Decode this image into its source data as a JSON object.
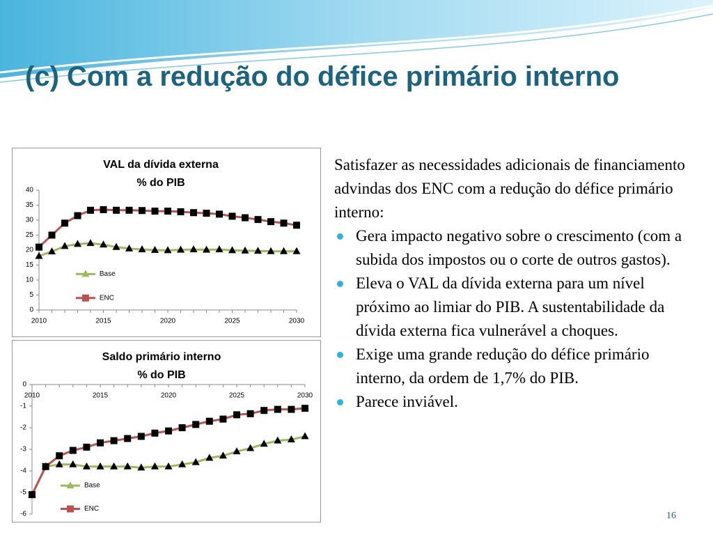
{
  "slide": {
    "title": "(c) Com a redução do défice primário interno",
    "intro": "Satisfazer as necessidades adicionais de financiamento advindas dos ENC com a redução do défice primário interno:",
    "bullets": [
      "Gera impacto negativo sobre o crescimento (com a subida dos impostos ou o corte de outros gastos).",
      "Eleva o VAL da dívida externa para um nível próximo ao limiar do PIB. A sustentabilidade da dívida externa fica vulnerável a choques.",
      "Exige uma grande redução do défice primário interno, da ordem de 1,7% do PIB.",
      "Parece inviável."
    ],
    "page_number": "16"
  },
  "chart_data": [
    {
      "type": "line",
      "title": [
        "VAL da dívida externa",
        "% do PIB"
      ],
      "x": [
        2010,
        2011,
        2012,
        2013,
        2014,
        2015,
        2016,
        2017,
        2018,
        2019,
        2020,
        2021,
        2022,
        2023,
        2024,
        2025,
        2026,
        2027,
        2028,
        2029,
        2030
      ],
      "xlim": [
        2010,
        2030
      ],
      "xticks": [
        2010,
        2015,
        2020,
        2025,
        2030
      ],
      "ylim": [
        0,
        40
      ],
      "yticks": [
        0,
        5,
        10,
        15,
        20,
        25,
        30,
        35,
        40
      ],
      "legend": "center-left",
      "series": [
        {
          "name": "Base",
          "color": "#9bbb59",
          "marker": "triangle",
          "marker_color": "#000000",
          "values": [
            18,
            19.5,
            21.3,
            22,
            22.3,
            21.8,
            21,
            20.5,
            20.2,
            20,
            19.9,
            20.1,
            20.2,
            20.1,
            20.2,
            19.9,
            19.8,
            19.7,
            19.6,
            19.6,
            19.6
          ]
        },
        {
          "name": "ENC",
          "color": "#c0504d",
          "marker": "square",
          "marker_color": "#000000",
          "values": [
            21,
            25,
            29,
            31.5,
            33.3,
            33.5,
            33.3,
            33.3,
            33.2,
            33,
            33,
            32.8,
            32.5,
            32.3,
            32,
            31.3,
            30.8,
            30.2,
            29.5,
            29,
            28.3
          ]
        }
      ]
    },
    {
      "type": "line",
      "title": [
        "Saldo primário interno",
        "% do PIB"
      ],
      "x": [
        2010,
        2011,
        2012,
        2013,
        2014,
        2015,
        2016,
        2017,
        2018,
        2019,
        2020,
        2021,
        2022,
        2023,
        2024,
        2025,
        2026,
        2027,
        2028,
        2029,
        2030
      ],
      "xlim": [
        2010,
        2030
      ],
      "xticks": [
        2010,
        2015,
        2020,
        2025,
        2030
      ],
      "ylim": [
        -6,
        0
      ],
      "yticks": [
        -6,
        -5,
        -4,
        -3,
        -2,
        -1,
        0
      ],
      "legend": "bottom-left",
      "series": [
        {
          "name": "Base",
          "color": "#9bbb59",
          "marker": "triangle",
          "marker_color": "#000000",
          "values": [
            -5.1,
            -3.8,
            -3.7,
            -3.7,
            -3.8,
            -3.8,
            -3.8,
            -3.8,
            -3.85,
            -3.8,
            -3.8,
            -3.7,
            -3.6,
            -3.4,
            -3.3,
            -3.1,
            -2.95,
            -2.75,
            -2.6,
            -2.55,
            -2.4
          ]
        },
        {
          "name": "ENC",
          "color": "#c0504d",
          "marker": "square",
          "marker_color": "#000000",
          "values": [
            -5.1,
            -3.8,
            -3.3,
            -3.05,
            -2.9,
            -2.7,
            -2.6,
            -2.5,
            -2.4,
            -2.25,
            -2.15,
            -2,
            -1.85,
            -1.7,
            -1.6,
            -1.4,
            -1.35,
            -1.2,
            -1.15,
            -1.15,
            -1.1
          ]
        }
      ]
    }
  ]
}
